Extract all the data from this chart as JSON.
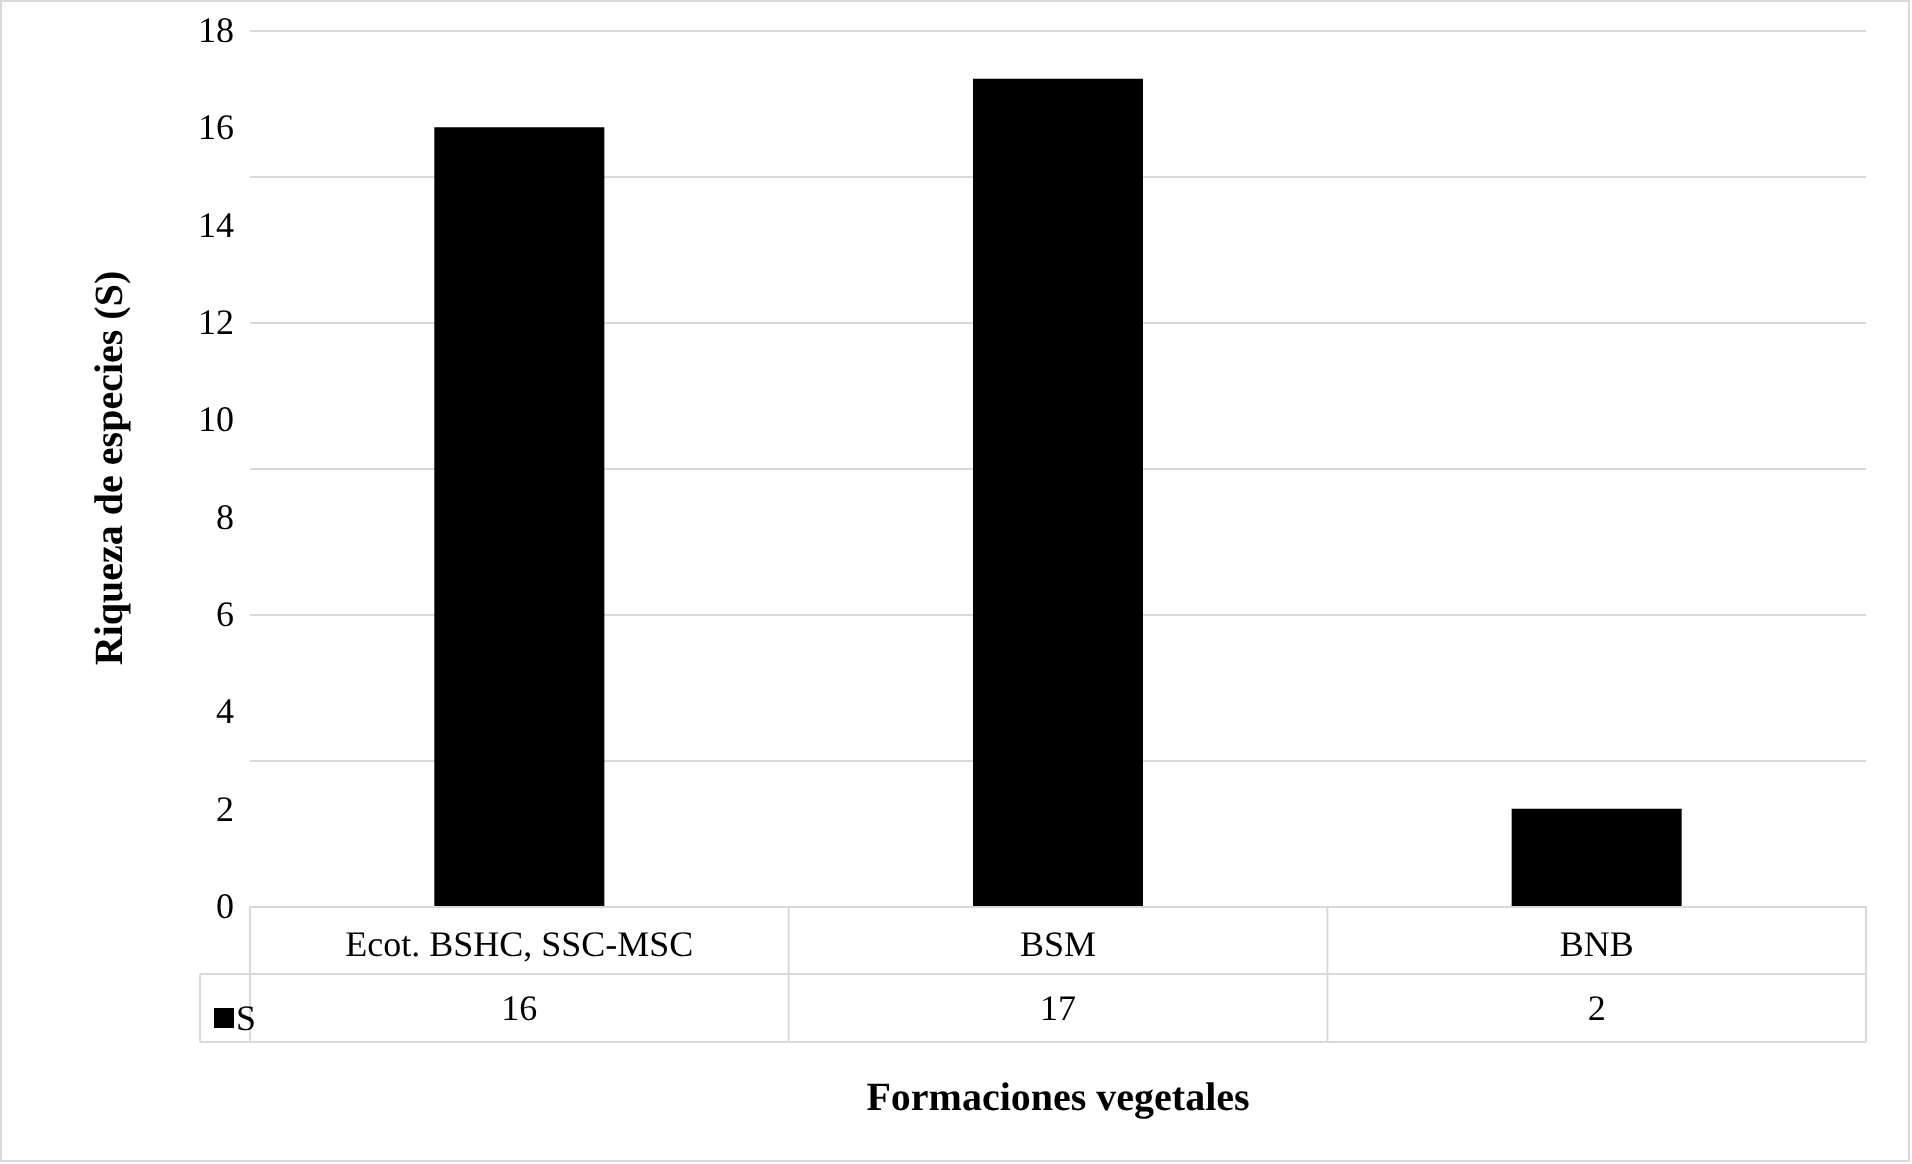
{
  "chart_data": {
    "type": "bar",
    "xlabel": "Formaciones vegetales",
    "ylabel": "Riqueza de especies (S)",
    "categories": [
      "Ecot. BSHC, SSC-MSC",
      "BSM",
      "BNB"
    ],
    "series": [
      {
        "name": "S",
        "color": "#000000",
        "values": [
          16,
          17,
          2
        ]
      }
    ],
    "ylim": [
      0,
      18
    ],
    "yticks": [
      0,
      2,
      4,
      6,
      8,
      10,
      12,
      14,
      16,
      18
    ],
    "grid": "y",
    "legend": "bottom left",
    "data_labels": true
  }
}
